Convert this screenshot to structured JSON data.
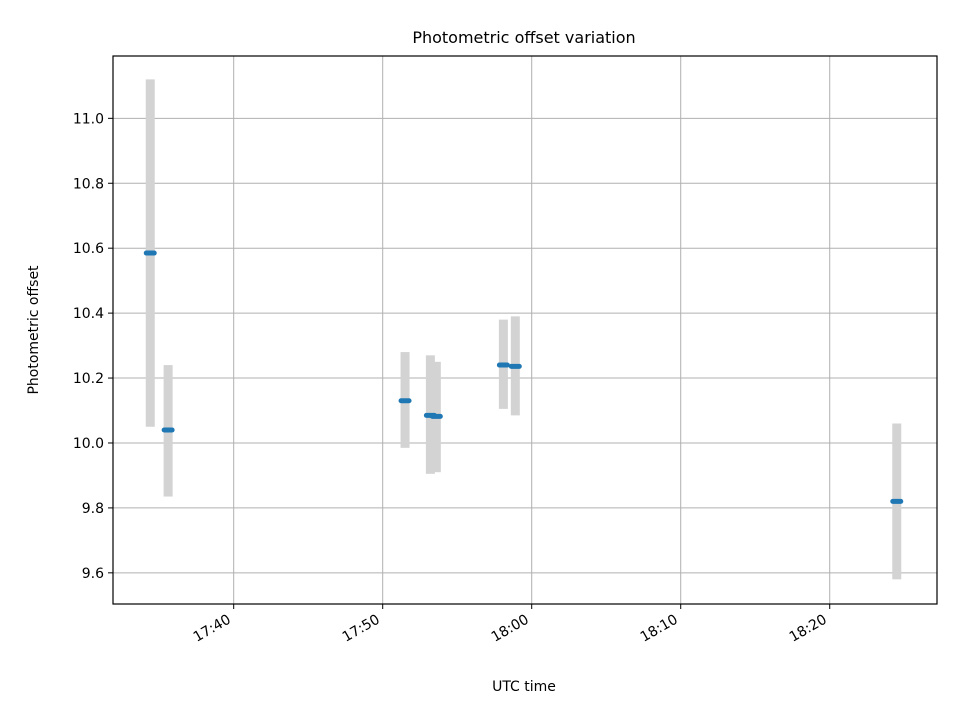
{
  "chart_data": {
    "type": "scatter",
    "title": "Photometric offset variation",
    "xlabel": "UTC time",
    "ylabel": "Photometric offset",
    "x_ticks": [
      "17:40",
      "17:50",
      "18:00",
      "18:10",
      "18:20"
    ],
    "y_ticks": [
      "9.6",
      "9.8",
      "10.0",
      "10.2",
      "10.4",
      "10.6",
      "10.8",
      "11.0"
    ],
    "x_tick_values": [
      "17:40",
      "17:50",
      "18:00",
      "18:10",
      "18:20"
    ],
    "y_tick_values": [
      9.6,
      9.8,
      10.0,
      10.2,
      10.4,
      10.6,
      10.8,
      11.0
    ],
    "xlim": [
      "17:31:54",
      "18:27:12"
    ],
    "ylim": [
      9.504,
      11.192
    ],
    "grid": true,
    "colors": {
      "point": "#1f77b4",
      "errorbar": "#d3d3d3",
      "grid": "#b0b0b0"
    },
    "points": [
      {
        "time": "17:34:24",
        "y": 10.585,
        "yerr_low": 10.05,
        "yerr_high": 11.12
      },
      {
        "time": "17:35:36",
        "y": 10.04,
        "yerr_low": 9.835,
        "yerr_high": 10.24
      },
      {
        "time": "17:51:30",
        "y": 10.13,
        "yerr_low": 9.985,
        "yerr_high": 10.28
      },
      {
        "time": "17:53:12",
        "y": 10.085,
        "yerr_low": 9.905,
        "yerr_high": 10.27
      },
      {
        "time": "17:53:36",
        "y": 10.082,
        "yerr_low": 9.91,
        "yerr_high": 10.25
      },
      {
        "time": "17:58:06",
        "y": 10.24,
        "yerr_low": 10.105,
        "yerr_high": 10.38
      },
      {
        "time": "17:58:54",
        "y": 10.236,
        "yerr_low": 10.085,
        "yerr_high": 10.39
      },
      {
        "time": "18:24:30",
        "y": 9.82,
        "yerr_low": 9.58,
        "yerr_high": 10.06
      }
    ]
  }
}
